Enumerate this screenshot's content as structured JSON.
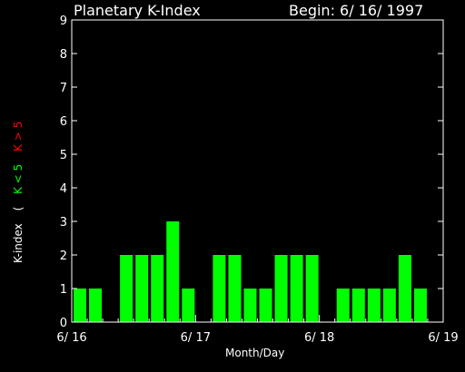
{
  "chart_data": {
    "type": "bar",
    "title": "Planetary K-Index",
    "begin_label": "Begin: 6/ 16/ 1997",
    "xlabel": "Month/Day",
    "ylabel": {
      "prefix": "K-index",
      "paren_open": "(",
      "green_part": "K < 5",
      "red_part": "K > 5"
    },
    "ylim": [
      0,
      9
    ],
    "yticks": [
      0,
      1,
      2,
      3,
      4,
      5,
      6,
      7,
      8,
      9
    ],
    "xlim": [
      0,
      24
    ],
    "xticks": [
      {
        "value": 0,
        "label": "6/ 16"
      },
      {
        "value": 8,
        "label": "6/ 17"
      },
      {
        "value": 16,
        "label": "6/ 18"
      },
      {
        "value": 24,
        "label": "6/ 19"
      }
    ],
    "bar_color": "#00ff00",
    "values": [
      1,
      1,
      0,
      2,
      2,
      2,
      3,
      1,
      0,
      2,
      2,
      1,
      1,
      2,
      2,
      2,
      0,
      1,
      1,
      1,
      1,
      2,
      1,
      0
    ]
  }
}
